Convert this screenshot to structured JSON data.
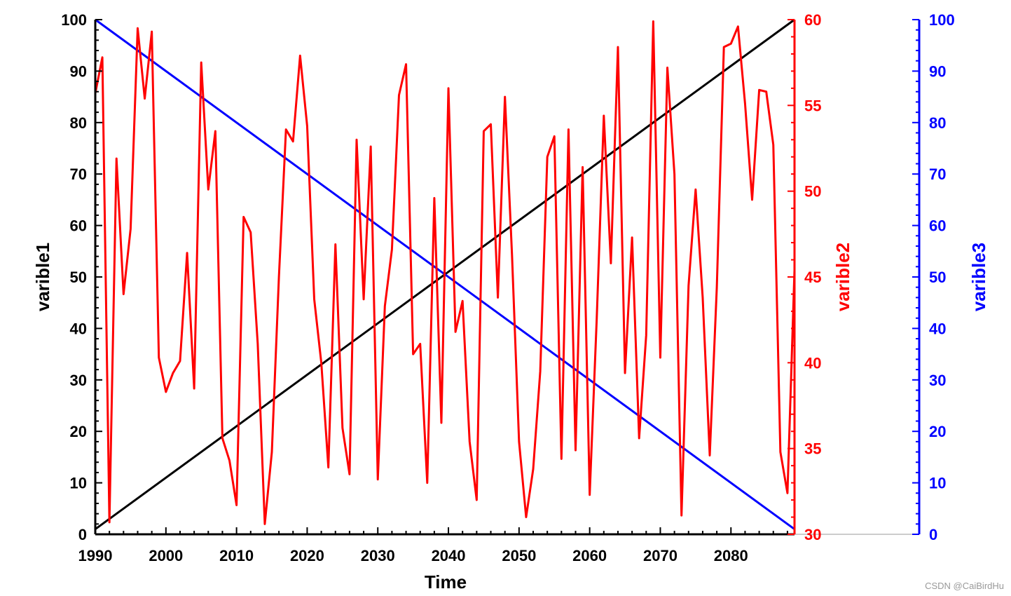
{
  "chart_data": {
    "type": "line",
    "xlabel": "Time",
    "xlim": [
      1990,
      2089
    ],
    "x_ticks": [
      1990,
      2000,
      2010,
      2020,
      2030,
      2040,
      2050,
      2060,
      2070,
      2080
    ],
    "axes": [
      {
        "name": "varible1",
        "side": "left",
        "color": "#000000",
        "ylim": [
          0,
          100
        ],
        "ticks": [
          0,
          10,
          20,
          30,
          40,
          50,
          60,
          70,
          80,
          90,
          100
        ]
      },
      {
        "name": "varible2",
        "side": "right",
        "color": "#ff0000",
        "ylim": [
          30,
          60
        ],
        "ticks": [
          30,
          35,
          40,
          45,
          50,
          55,
          60
        ]
      },
      {
        "name": "varible3",
        "side": "right-outer",
        "color": "#0000ff",
        "ylim": [
          0,
          100
        ],
        "ticks": [
          0,
          10,
          20,
          30,
          40,
          50,
          60,
          70,
          80,
          90,
          100
        ]
      }
    ],
    "series": [
      {
        "axis": 0,
        "color": "#000000",
        "x": [
          1990,
          2089
        ],
        "values": [
          1,
          100
        ]
      },
      {
        "axis": 2,
        "color": "#0000ff",
        "x": [
          1990,
          2089
        ],
        "values": [
          100,
          1
        ]
      },
      {
        "axis": 1,
        "color": "#ff0000",
        "x_start": 1990,
        "values": [
          55.7,
          57.8,
          30.7,
          51.9,
          44.0,
          47.8,
          59.5,
          55.4,
          59.3,
          40.3,
          38.3,
          39.4,
          40.1,
          46.4,
          38.5,
          57.5,
          50.1,
          53.5,
          35.6,
          34.3,
          31.7,
          48.5,
          47.6,
          41.1,
          30.6,
          34.8,
          45.0,
          53.6,
          52.9,
          57.9,
          53.8,
          43.7,
          40.0,
          33.9,
          46.9,
          36.2,
          33.5,
          53.0,
          43.7,
          52.6,
          33.2,
          43.3,
          46.6,
          55.6,
          57.4,
          40.5,
          41.1,
          33.0,
          49.6,
          36.5,
          56.0,
          41.8,
          43.6,
          35.4,
          32.0,
          53.5,
          53.9,
          43.8,
          55.5,
          46.3,
          35.4,
          31.0,
          33.8,
          39.5,
          52.0,
          53.2,
          34.4,
          53.6,
          34.9,
          51.4,
          32.3,
          42.6,
          54.4,
          45.8,
          58.4,
          39.4,
          47.3,
          35.6,
          41.6,
          59.9,
          40.3,
          57.2,
          51.0,
          31.1,
          44.5,
          50.1,
          43.8,
          34.6,
          44.4,
          58.4,
          58.6,
          59.6,
          55.1,
          49.5,
          55.9,
          55.8,
          52.7,
          34.8,
          32.4,
          45.4
        ]
      }
    ]
  },
  "watermark": "CSDN @CaiBirdHu"
}
